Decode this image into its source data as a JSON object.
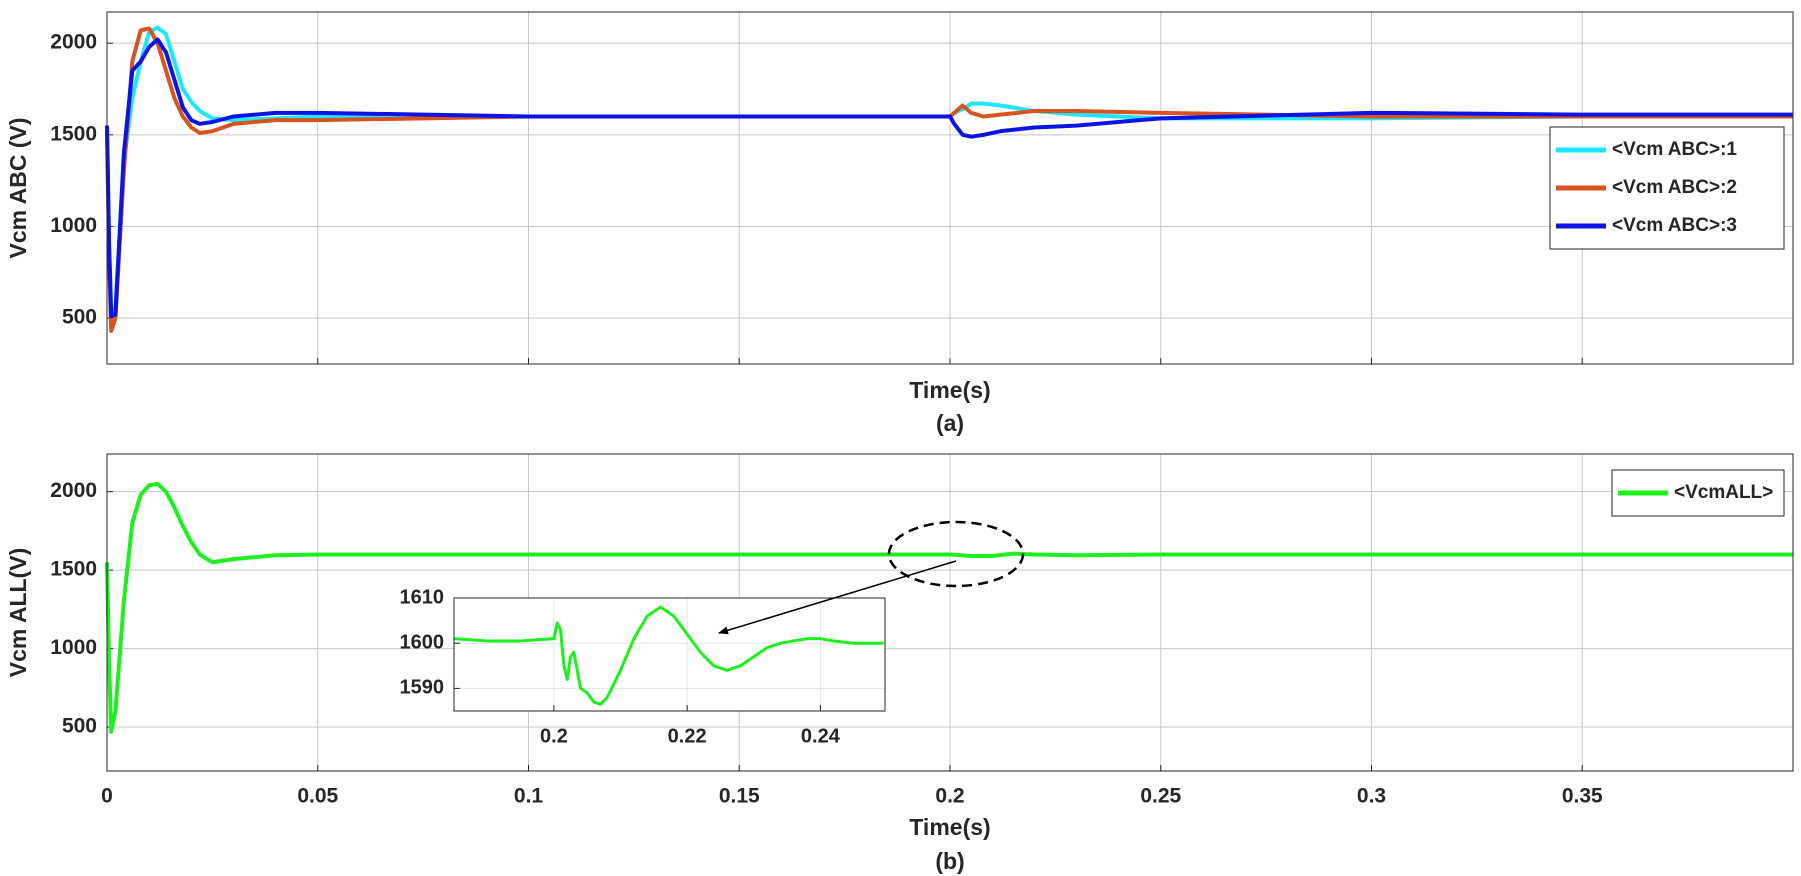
{
  "chart_data": [
    {
      "type": "line",
      "ylabel": "Vcm ABC (V)",
      "xlabel": "Time(s)",
      "caption": "(a)",
      "xlim": [
        0,
        0.4
      ],
      "ylim": [
        250,
        2170
      ],
      "xticks": [
        0,
        0.05,
        0.1,
        0.15,
        0.2,
        0.25,
        0.3,
        0.35
      ],
      "show_xtick_labels": false,
      "yticks": [
        500,
        1000,
        1500,
        2000
      ],
      "grid": true,
      "legend": "center right",
      "x": [
        0,
        0.0005,
        0.001,
        0.002,
        0.004,
        0.006,
        0.008,
        0.01,
        0.012,
        0.014,
        0.016,
        0.018,
        0.02,
        0.022,
        0.025,
        0.03,
        0.04,
        0.05,
        0.1,
        0.15,
        0.2,
        0.201,
        0.203,
        0.205,
        0.208,
        0.212,
        0.22,
        0.23,
        0.25,
        0.3,
        0.35,
        0.4
      ],
      "series": [
        {
          "name": "<Vcm ABC>:1",
          "color": "#1ee6ff",
          "values": [
            1550,
            900,
            520,
            560,
            1350,
            1700,
            1900,
            2060,
            2085,
            2050,
            1900,
            1750,
            1680,
            1630,
            1590,
            1580,
            1590,
            1600,
            1600,
            1600,
            1600,
            1620,
            1640,
            1670,
            1670,
            1660,
            1630,
            1610,
            1590,
            1590,
            1600,
            1600
          ]
        },
        {
          "name": "<Vcm ABC>:2",
          "color": "#d9531e",
          "values": [
            1550,
            800,
            430,
            500,
            1300,
            1900,
            2070,
            2080,
            2000,
            1850,
            1700,
            1600,
            1540,
            1510,
            1520,
            1560,
            1580,
            1580,
            1600,
            1600,
            1600,
            1620,
            1660,
            1620,
            1600,
            1610,
            1630,
            1630,
            1620,
            1600,
            1600,
            1600
          ]
        },
        {
          "name": "<Vcm ABC>:3",
          "color": "#0a14e6",
          "values": [
            1550,
            900,
            510,
            520,
            1400,
            1850,
            1900,
            1980,
            2020,
            1950,
            1800,
            1650,
            1580,
            1560,
            1570,
            1600,
            1620,
            1620,
            1600,
            1600,
            1600,
            1560,
            1500,
            1490,
            1500,
            1520,
            1540,
            1550,
            1590,
            1620,
            1610,
            1610
          ]
        }
      ]
    },
    {
      "type": "line",
      "ylabel": "Vcm ALL(V)",
      "xlabel": "Time(s)",
      "caption": "(b)",
      "xlim": [
        0,
        0.4
      ],
      "ylim": [
        220,
        2240
      ],
      "xticks": [
        0,
        0.05,
        0.1,
        0.15,
        0.2,
        0.25,
        0.3,
        0.35
      ],
      "show_xtick_labels": true,
      "yticks": [
        500,
        1000,
        1500,
        2000
      ],
      "grid": true,
      "legend": "upper right",
      "x": [
        0,
        0.0005,
        0.001,
        0.002,
        0.004,
        0.006,
        0.008,
        0.01,
        0.012,
        0.014,
        0.016,
        0.018,
        0.02,
        0.022,
        0.025,
        0.03,
        0.04,
        0.05,
        0.1,
        0.15,
        0.2,
        0.205,
        0.21,
        0.215,
        0.22,
        0.23,
        0.25,
        0.3,
        0.35,
        0.4
      ],
      "series": [
        {
          "name": "<VcmALL>",
          "color": "#1ef01e",
          "values": [
            1550,
            900,
            470,
            600,
            1300,
            1800,
            1980,
            2040,
            2050,
            2000,
            1900,
            1780,
            1680,
            1600,
            1550,
            1570,
            1595,
            1600,
            1600,
            1600,
            1600,
            1590,
            1590,
            1605,
            1600,
            1595,
            1600,
            1600,
            1600,
            1600
          ]
        }
      ]
    },
    {
      "type": "line",
      "xlim": [
        0.185,
        0.2497
      ],
      "ylim": [
        1585,
        1610
      ],
      "xticks": [
        0.2,
        0.22,
        0.24
      ],
      "show_xtick_labels": true,
      "yticks": [
        1590,
        1600,
        1610
      ],
      "grid": true,
      "x": [
        0.185,
        0.19,
        0.195,
        0.2,
        0.2005,
        0.201,
        0.2015,
        0.202,
        0.2025,
        0.203,
        0.2035,
        0.204,
        0.205,
        0.206,
        0.207,
        0.208,
        0.21,
        0.212,
        0.214,
        0.216,
        0.218,
        0.22,
        0.222,
        0.224,
        0.226,
        0.228,
        0.23,
        0.232,
        0.234,
        0.236,
        0.238,
        0.24,
        0.242,
        0.245,
        0.2495
      ],
      "series": [
        {
          "name": null,
          "color": "#1ef01e",
          "values": [
            1601,
            1600.5,
            1600.5,
            1601,
            1604.5,
            1603,
            1595,
            1592,
            1597,
            1598,
            1594,
            1590,
            1589,
            1587,
            1586.5,
            1588,
            1594,
            1601,
            1606,
            1608,
            1606,
            1602,
            1598,
            1595,
            1594,
            1595,
            1597,
            1599,
            1600,
            1600.5,
            1601,
            1601,
            1600.5,
            1600,
            1600
          ]
        }
      ]
    }
  ]
}
